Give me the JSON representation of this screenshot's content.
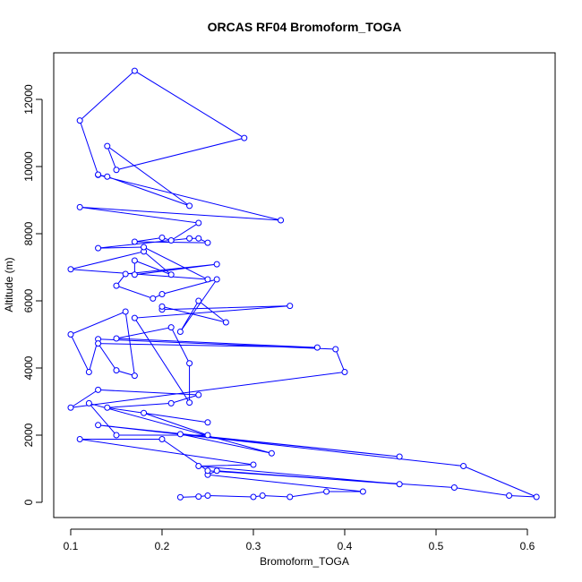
{
  "chart_data": {
    "type": "line",
    "title": "ORCAS RF04 Bromoform_TOGA",
    "x_label": "Bromoform_TOGA",
    "y_label": "Altitude (m)",
    "color": "#0000ff",
    "markers": true,
    "x": [
      0.22,
      0.24,
      0.25,
      0.3,
      0.31,
      0.34,
      0.38,
      0.42,
      0.25,
      0.26,
      0.46,
      0.24,
      0.3,
      0.11,
      0.2,
      0.25,
      0.52,
      0.58,
      0.61,
      0.53,
      0.13,
      0.46,
      0.22,
      0.32,
      0.12,
      0.15,
      0.25,
      0.18,
      0.25,
      0.14,
      0.21,
      0.24,
      0.13,
      0.1,
      0.4,
      0.39,
      0.13,
      0.12,
      0.1,
      0.16,
      0.17,
      0.15,
      0.13,
      0.37,
      0.15,
      0.21,
      0.23,
      0.23,
      0.17,
      0.34,
      0.2,
      0.2,
      0.27,
      0.24,
      0.22,
      0.26,
      0.2,
      0.19,
      0.15,
      0.16,
      0.26,
      0.17,
      0.17,
      0.21,
      0.18,
      0.1,
      0.25,
      0.18,
      0.13,
      0.23,
      0.24,
      0.25,
      0.17,
      0.2,
      0.21,
      0.24,
      0.11,
      0.33,
      0.13,
      0.14,
      0.23,
      0.14,
      0.15,
      0.29,
      0.17,
      0.11,
      0.13
    ],
    "values": [
      150,
      170,
      200,
      160,
      200,
      160,
      320,
      320,
      820,
      940,
      540,
      1080,
      1120,
      1880,
      1880,
      940,
      440,
      200,
      160,
      1080,
      2300,
      1360,
      2030,
      1460,
      2950,
      2000,
      2000,
      2660,
      2380,
      2820,
      2950,
      3200,
      3350,
      2820,
      3880,
      4560,
      4860,
      3880,
      5000,
      5680,
      3770,
      3930,
      4730,
      4610,
      4880,
      5210,
      4140,
      2970,
      5490,
      5850,
      5740,
      5830,
      5360,
      6000,
      5080,
      6640,
      6200,
      6070,
      6450,
      6800,
      7090,
      6780,
      7200,
      6780,
      7470,
      6940,
      6640,
      7600,
      7570,
      7860,
      7860,
      7730,
      7760,
      7880,
      7800,
      8320,
      8790,
      8400,
      9750,
      9700,
      8830,
      10610,
      9900,
      10850,
      12850,
      11370,
      9760
    ],
    "xlim": [
      0.0814,
      0.6304
    ],
    "ylim": [
      -453,
      13387
    ],
    "xticks": [
      0.1,
      0.2,
      0.3,
      0.4,
      0.5,
      0.6
    ],
    "yticks": [
      0,
      2000,
      4000,
      6000,
      8000,
      10000,
      12000
    ]
  }
}
